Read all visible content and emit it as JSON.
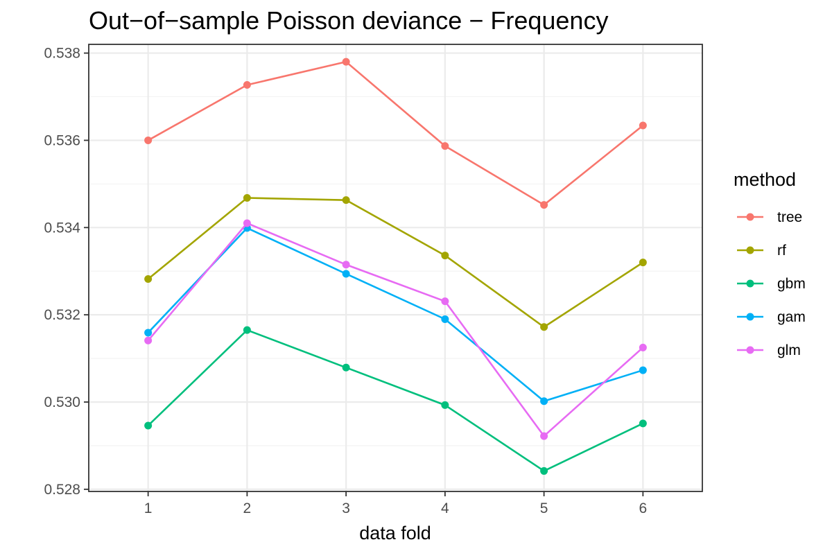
{
  "chart_data": {
    "type": "line",
    "title": "Out−of−sample Poisson deviance − Frequency",
    "xlabel": "data fold",
    "ylabel": "",
    "x": [
      1,
      2,
      3,
      4,
      5,
      6
    ],
    "x_tick_labels": [
      "1",
      "2",
      "3",
      "4",
      "5",
      "6"
    ],
    "xlim": [
      0.4,
      6.6
    ],
    "ylim": [
      0.52795,
      0.5382
    ],
    "y_ticks": [
      0.528,
      0.53,
      0.532,
      0.534,
      0.536,
      0.538
    ],
    "y_tick_labels": [
      "0.528",
      "0.530",
      "0.532",
      "0.534",
      "0.536",
      "0.538"
    ],
    "grid": true,
    "legend": {
      "title": "method",
      "position": "right"
    },
    "series": [
      {
        "name": "tree",
        "color": "#F8766D",
        "values": [
          0.536,
          0.53727,
          0.5378,
          0.53587,
          0.53452,
          0.53634
        ]
      },
      {
        "name": "rf",
        "color": "#A3A500",
        "values": [
          0.53282,
          0.53468,
          0.53463,
          0.53336,
          0.53172,
          0.5332
        ]
      },
      {
        "name": "gbm",
        "color": "#00BF7D",
        "values": [
          0.52946,
          0.53165,
          0.53079,
          0.52993,
          0.52842,
          0.52951
        ]
      },
      {
        "name": "gam",
        "color": "#00B0F6",
        "values": [
          0.53159,
          0.53399,
          0.53294,
          0.5319,
          0.53002,
          0.53073
        ]
      },
      {
        "name": "glm",
        "color": "#E76BF3",
        "values": [
          0.53141,
          0.5341,
          0.53315,
          0.53231,
          0.52922,
          0.53125
        ]
      }
    ]
  }
}
